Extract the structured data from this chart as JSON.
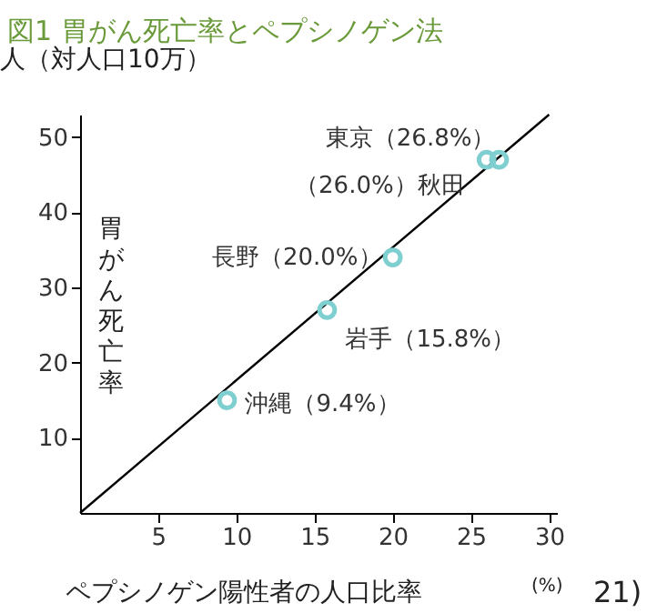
{
  "chart_data": {
    "type": "scatter",
    "title": "図1 胃がん死亡率とペプシノゲン法",
    "xlabel": "ペプシノゲン陽性者の人口比率",
    "ylabel": "胃がん死亡率",
    "xlim": [
      0,
      30.5
    ],
    "ylim": [
      0,
      53
    ],
    "xticks": [
      5,
      10,
      15,
      20,
      25,
      30
    ],
    "yticks": [
      10,
      20,
      30,
      40,
      50
    ],
    "grid": false,
    "marker": "circle",
    "series": [
      {
        "type": "line",
        "marker": "none",
        "color": "#000000",
        "x": [
          0,
          30
        ],
        "values": [
          0,
          53
        ]
      },
      {
        "color": "#7fcfd0",
        "x": [
          9.4,
          15.8,
          20.0,
          26.0,
          26.8
        ],
        "values": [
          15,
          27,
          34,
          47,
          47
        ]
      }
    ],
    "annotations": [
      "人（対人口10万）",
      "(%)",
      "21)",
      {
        "text": "沖縄（9.4%）",
        "x": 9.4,
        "y": 15
      },
      {
        "text": "岩手（15.8%）",
        "x": 15.8,
        "y": 27
      },
      {
        "text": "長野（20.0%）",
        "x": 20.0,
        "y": 34
      },
      {
        "text": "（26.0%）秋田",
        "x": 26.0,
        "y": 47
      },
      {
        "text": "東京（26.8%）",
        "x": 26.8,
        "y": 47
      }
    ]
  }
}
